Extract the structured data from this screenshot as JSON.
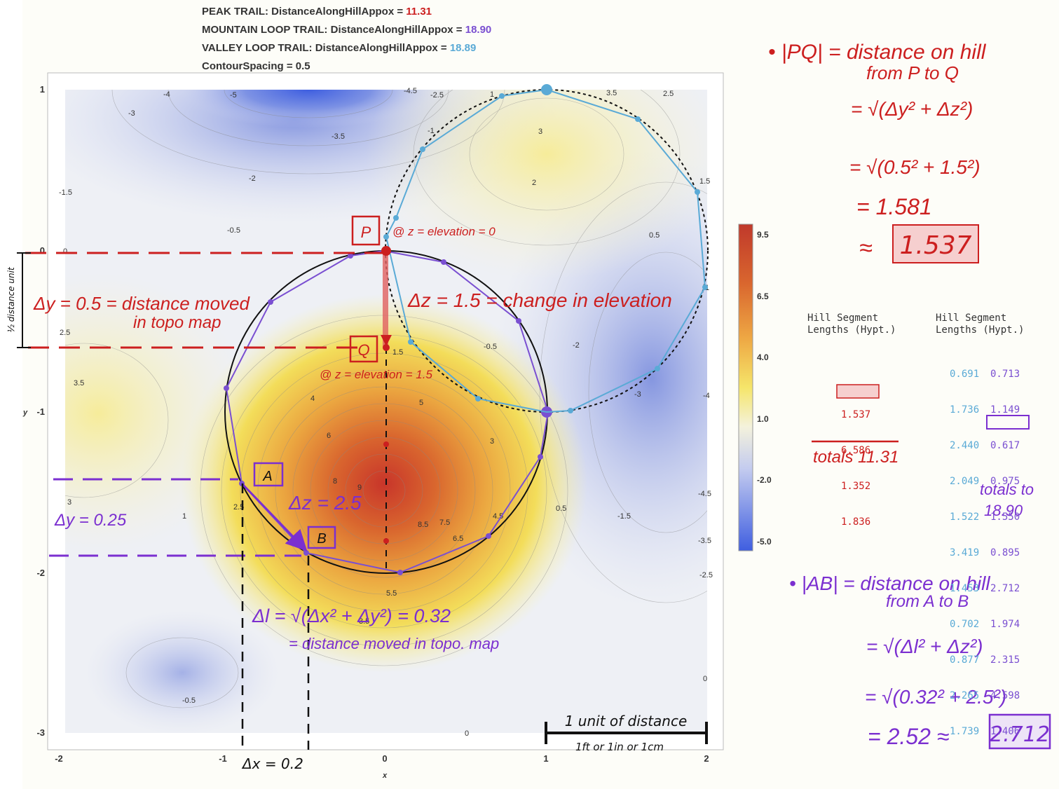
{
  "header": {
    "trails": [
      {
        "label": "PEAK TRAIL:",
        "metric": "DistanceAlongHillAppox =",
        "value": "11.31",
        "color": "#cc1f1f"
      },
      {
        "label": "MOUNTAIN LOOP TRAIL:",
        "metric": "DistanceAlongHillAppox =",
        "value": "18.90",
        "color": "#7a4fd1"
      },
      {
        "label": "VALLEY LOOP TRAIL:",
        "metric": "DistanceAlongHillAppox =",
        "value": "18.89",
        "color": "#5aaad6"
      }
    ],
    "contour_spacing": "ContourSpacing = 0.5"
  },
  "plot": {
    "x_ticks": [
      "-2",
      "-1",
      "0",
      "1",
      "2"
    ],
    "y_ticks": [
      "1",
      "0",
      "-1",
      "-2",
      "-3"
    ],
    "x_axis_label": "x",
    "y_axis_label": "y",
    "contour_labels": [
      "-4",
      "-5",
      "-4.5",
      "-2.5",
      "1",
      "3.5",
      "2.5",
      "-3",
      "-3.5",
      "-1",
      "3",
      "-2",
      "2",
      "1.5",
      "-1.5",
      "-0.5",
      "0.5",
      "0",
      "1",
      "2.5",
      "-0.5",
      "-2",
      "1.5",
      "3.5",
      "4",
      "5",
      "-3",
      "-4",
      "6",
      "3",
      "8",
      "9",
      "3",
      "2.5",
      "1",
      "8.5",
      "7.5",
      "4.5",
      "0.5",
      "-1.5",
      "-4.5",
      "6.5",
      "-3.5",
      "-2.5",
      "5.5",
      "3.5",
      "0",
      "-0.5",
      "0"
    ],
    "colorbar_ticks": [
      "9.5",
      "6.5",
      "4.0",
      "1.0",
      "-2.0",
      "-5.0"
    ]
  },
  "annotations": {
    "P": "P",
    "Q": "Q",
    "A": "A",
    "B": "B",
    "p_elev": "@ z = elevation = 0",
    "q_elev": "@ z = elevation = 1.5",
    "dz_pq": "Δz = 1.5 = change in elevation",
    "dy_pq_line1": "Δy = 0.5 = distance moved",
    "dy_pq_line2": "in topo map",
    "half_unit": "½ distance unit",
    "dz_ab": "Δz = 2.5",
    "dy_ab": "Δy = 0.25",
    "dl_formula": "Δl = √(Δx² + Δy²) = 0.32",
    "dl_note": "= distance moved in topo. map",
    "dx": "Δx = 0.2",
    "scale_top": "1 unit of distance",
    "scale_bottom": "1ft or 1in or 1cm"
  },
  "right_notes": {
    "pq_title1": "• |PQ| = distance on hill",
    "pq_title2": "from P to Q",
    "pq_f1": "= √(Δy² + Δz²)",
    "pq_f2": "= √(0.5² + 1.5²)",
    "pq_f3": "= 1.581",
    "pq_approx": "≈",
    "pq_box": "1.537",
    "ab_title1": "• |AB| = distance on hill",
    "ab_title2": "from A to B",
    "ab_f1": "= √(Δl² + Δz²)",
    "ab_f2": "= √(0.32² + 2.5²)",
    "ab_f3": "= 2.52 ≈",
    "ab_box": "2.712"
  },
  "segments": {
    "left_header": "Hill Segment\nLengths (Hypt.)",
    "right_header": "Hill Segment\nLengths (Hypt.)",
    "left_values": [
      "1.537",
      "6.586",
      "1.352",
      "1.836"
    ],
    "left_total": "totals 11.31",
    "right_col1": [
      "0.691",
      "1.736",
      "2.440",
      "2.049",
      "1.522",
      "3.419",
      "1.453",
      "0.702",
      "0.877",
      "2.265",
      "1.739"
    ],
    "right_col2": [
      "0.713",
      "1.149",
      "0.617",
      "0.975",
      "1.550",
      "0.895",
      "2.712",
      "1.974",
      "2.315",
      "4.598",
      "1.406"
    ],
    "right_total_1": "totals to",
    "right_total_2": "18.90"
  }
}
